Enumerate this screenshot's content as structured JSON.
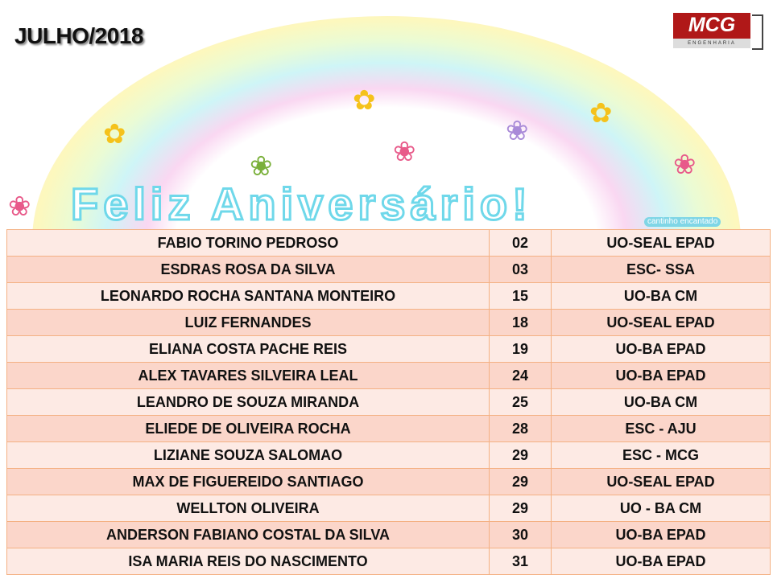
{
  "title": "JULHO/2018",
  "logo": {
    "text": "MCG",
    "subtext": "ENGENHARIA"
  },
  "banner": {
    "text": "Feliz Aniversário!",
    "credit": "cantinho encantado"
  },
  "rows": [
    {
      "name": "FABIO TORINO PEDROSO",
      "day": "02",
      "unit": "UO-SEAL EPAD"
    },
    {
      "name": "ESDRAS ROSA DA SILVA",
      "day": "03",
      "unit": "ESC- SSA"
    },
    {
      "name": "LEONARDO ROCHA SANTANA MONTEIRO",
      "day": "15",
      "unit": "UO-BA CM"
    },
    {
      "name": "LUIZ FERNANDES",
      "day": "18",
      "unit": "UO-SEAL EPAD"
    },
    {
      "name": "ELIANA COSTA PACHE REIS",
      "day": "19",
      "unit": "UO-BA EPAD"
    },
    {
      "name": "ALEX TAVARES SILVEIRA LEAL",
      "day": "24",
      "unit": "UO-BA EPAD"
    },
    {
      "name": "LEANDRO DE SOUZA MIRANDA",
      "day": "25",
      "unit": "UO-BA CM"
    },
    {
      "name": "ELIEDE DE OLIVEIRA ROCHA",
      "day": "28",
      "unit": "ESC -  AJU"
    },
    {
      "name": "LIZIANE SOUZA SALOMAO",
      "day": "29",
      "unit": "ESC -  MCG"
    },
    {
      "name": "MAX DE FIGUEREIDO SANTIAGO",
      "day": "29",
      "unit": "UO-SEAL EPAD"
    },
    {
      "name": "WELLTON OLIVEIRA",
      "day": "29",
      "unit": "UO - BA CM"
    },
    {
      "name": "ANDERSON FABIANO COSTAL DA SILVA",
      "day": "30",
      "unit": "UO-BA EPAD"
    },
    {
      "name": "ISA MARIA REIS DO NASCIMENTO",
      "day": "31",
      "unit": "UO-BA EPAD"
    }
  ]
}
